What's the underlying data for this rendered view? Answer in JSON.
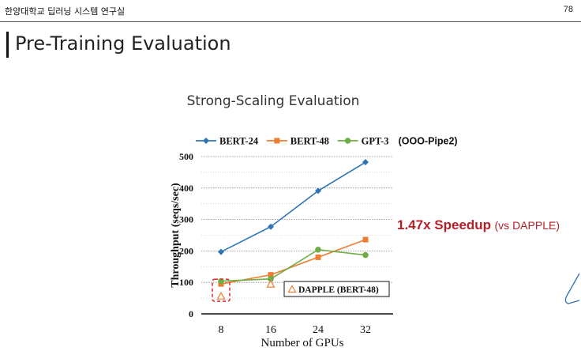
{
  "header": {
    "label": "한양대학교 딥러닝 시스템 연구실",
    "page_number": "78"
  },
  "slide": {
    "title": "Pre-Training Evaluation"
  },
  "annotation": {
    "speedup_value": "1.47x Speedup",
    "speedup_note": "(vs DAPPLE)"
  },
  "colors": {
    "bert24": "#2e75b6",
    "bert48": "#ed7d31",
    "gpt3": "#70ad47",
    "dapple": "#ed7d31",
    "highlight": "#e03030",
    "speedup": "#b3202a"
  },
  "chart_data": {
    "type": "line",
    "title": "Strong-Scaling Evaluation",
    "legend_suffix": "(OOO-Pipe2)",
    "xlabel": "Number of GPUs",
    "ylabel": "Throughput (seqs/sec)",
    "categories": [
      "8",
      "16",
      "24",
      "32"
    ],
    "ylim": [
      0,
      500
    ],
    "yticks": [
      0,
      100,
      200,
      300,
      400,
      500
    ],
    "series": [
      {
        "name": "BERT-24",
        "marker": "diamond",
        "values": [
          197,
          277,
          391,
          482
        ]
      },
      {
        "name": "BERT-48",
        "marker": "square",
        "values": [
          95,
          124,
          180,
          236
        ]
      },
      {
        "name": "GPT-3",
        "marker": "circle",
        "values": [
          104,
          111,
          204,
          187
        ]
      }
    ],
    "dapple": {
      "name": "DAPPLE (BERT-48)",
      "marker": "triangle",
      "values": [
        56,
        94
      ]
    }
  }
}
